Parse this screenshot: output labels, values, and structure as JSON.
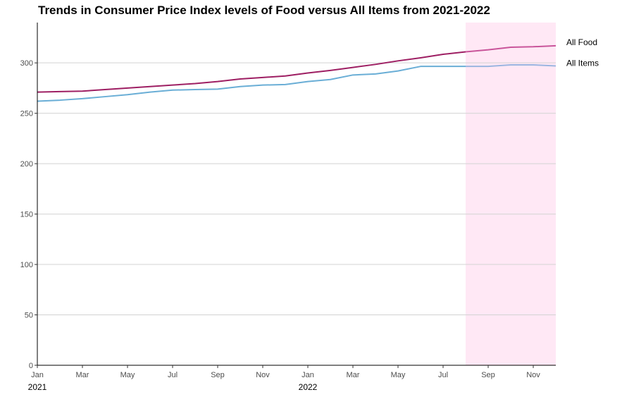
{
  "chart_data": {
    "type": "line",
    "title": "Trends in Consumer Price Index levels of Food versus All Items from 2021-2022",
    "xlabel": "",
    "ylabel": "",
    "ylim": [
      0,
      340
    ],
    "xlim": [
      "2021-01",
      "2022-12"
    ],
    "y_ticks": [
      0,
      50,
      100,
      150,
      200,
      250,
      300
    ],
    "x_ticks": [
      {
        "x": "2021-01",
        "label": "Jan"
      },
      {
        "x": "2021-03",
        "label": "Mar"
      },
      {
        "x": "2021-05",
        "label": "May"
      },
      {
        "x": "2021-07",
        "label": "Jul"
      },
      {
        "x": "2021-09",
        "label": "Sep"
      },
      {
        "x": "2021-11",
        "label": "Nov"
      },
      {
        "x": "2022-01",
        "label": "Jan"
      },
      {
        "x": "2022-03",
        "label": "Mar"
      },
      {
        "x": "2022-05",
        "label": "May"
      },
      {
        "x": "2022-07",
        "label": "Jul"
      },
      {
        "x": "2022-09",
        "label": "Sep"
      },
      {
        "x": "2022-11",
        "label": "Nov"
      }
    ],
    "year_labels": [
      {
        "x": "2021-01",
        "label": "2021"
      },
      {
        "x": "2022-01",
        "label": "2022"
      }
    ],
    "grid": "horizontal",
    "highlight": {
      "x_start": "2022-08",
      "x_end": "2022-12",
      "color": "#ffe8f5"
    },
    "x": [
      "2021-01",
      "2021-02",
      "2021-03",
      "2021-04",
      "2021-05",
      "2021-06",
      "2021-07",
      "2021-08",
      "2021-09",
      "2021-10",
      "2021-11",
      "2021-12",
      "2022-01",
      "2022-02",
      "2022-03",
      "2022-04",
      "2022-05",
      "2022-06",
      "2022-07",
      "2022-08",
      "2022-09",
      "2022-10",
      "2022-11",
      "2022-12"
    ],
    "series": [
      {
        "name": "All Food",
        "color": "#9e1f63",
        "highlight_color": "#c9559a",
        "values": [
          271.0,
          271.5,
          272.0,
          273.5,
          275.0,
          276.5,
          278.0,
          279.5,
          281.5,
          284.0,
          285.5,
          287.0,
          290.0,
          292.5,
          295.5,
          298.5,
          302.0,
          305.0,
          308.5,
          311.0,
          313.0,
          315.5,
          316.0,
          317.0
        ]
      },
      {
        "name": "All Items",
        "color": "#6aaed6",
        "highlight_color": "#9ab5e0",
        "values": [
          262.0,
          263.0,
          264.5,
          266.5,
          268.5,
          271.0,
          273.0,
          273.5,
          274.0,
          276.5,
          278.0,
          278.5,
          281.5,
          283.5,
          288.0,
          289.0,
          292.0,
          296.5,
          296.5,
          296.5,
          296.5,
          298.0,
          298.0,
          297.0
        ]
      }
    ]
  }
}
